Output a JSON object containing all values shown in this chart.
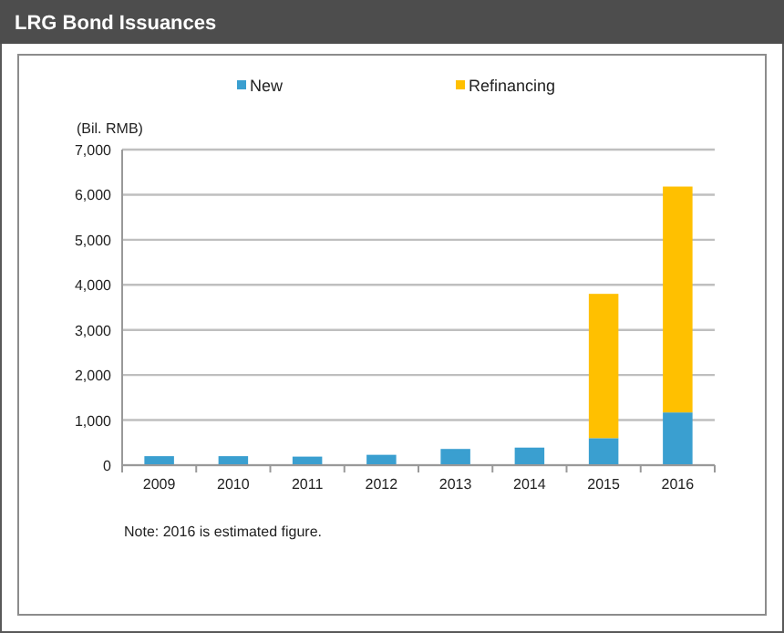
{
  "chart_data": {
    "type": "bar",
    "title": "LRG Bond Issuances",
    "ylabel": "(Bil. RMB)",
    "categories": [
      "2009",
      "2010",
      "2011",
      "2012",
      "2013",
      "2014",
      "2015",
      "2016"
    ],
    "series": [
      {
        "name": "New",
        "color": "#3a9fd0",
        "values": [
          200,
          200,
          190,
          230,
          360,
          390,
          600,
          1170
        ]
      },
      {
        "name": "Refinancing",
        "color": "#ffc000",
        "values": [
          0,
          0,
          0,
          0,
          0,
          0,
          3200,
          5010
        ]
      }
    ],
    "stacked": true,
    "ylim": [
      0,
      7000
    ],
    "yticks": [
      {
        "value": 0,
        "label": "0"
      },
      {
        "value": 1000,
        "label": "1,000"
      },
      {
        "value": 2000,
        "label": "2,000"
      },
      {
        "value": 3000,
        "label": "3,000"
      },
      {
        "value": 4000,
        "label": "4,000"
      },
      {
        "value": 5000,
        "label": "5,000"
      },
      {
        "value": 6000,
        "label": "6,000"
      },
      {
        "value": 7000,
        "label": "7,000"
      }
    ],
    "grid": "y",
    "legend": "top",
    "annotations": [
      "Note: 2016 is estimated figure."
    ]
  }
}
